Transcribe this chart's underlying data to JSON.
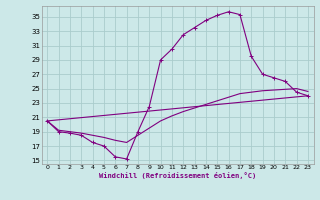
{
  "xlabel": "Windchill (Refroidissement éolien,°C)",
  "bg_color": "#cce8e8",
  "line_color": "#800080",
  "grid_color": "#aacccc",
  "xlim": [
    -0.5,
    23.5
  ],
  "ylim": [
    14.5,
    36.5
  ],
  "yticks": [
    15,
    17,
    19,
    21,
    23,
    25,
    27,
    29,
    31,
    33,
    35
  ],
  "xticks": [
    0,
    1,
    2,
    3,
    4,
    5,
    6,
    7,
    8,
    9,
    10,
    11,
    12,
    13,
    14,
    15,
    16,
    17,
    18,
    19,
    20,
    21,
    22,
    23
  ],
  "line1_x": [
    0,
    1,
    2,
    3,
    4,
    5,
    6,
    7,
    8,
    9,
    10,
    11,
    12,
    13,
    14,
    15,
    16,
    17,
    18,
    19,
    20,
    21,
    22,
    23
  ],
  "line1_y": [
    20.5,
    19.0,
    18.8,
    18.5,
    17.5,
    17.0,
    15.5,
    15.2,
    19.0,
    22.5,
    29.0,
    30.5,
    32.5,
    33.5,
    34.5,
    35.2,
    35.7,
    35.3,
    29.5,
    27.0,
    26.5,
    26.0,
    24.5,
    24.0
  ],
  "line2_x": [
    0,
    1,
    2,
    3,
    4,
    5,
    6,
    7,
    8,
    9,
    10,
    11,
    12,
    13,
    14,
    15,
    16,
    17,
    18,
    19,
    20,
    21,
    22,
    23
  ],
  "line2_y": [
    20.5,
    19.2,
    19.0,
    18.8,
    18.5,
    18.2,
    17.8,
    17.5,
    18.5,
    19.5,
    20.5,
    21.2,
    21.8,
    22.3,
    22.8,
    23.3,
    23.8,
    24.3,
    24.5,
    24.7,
    24.8,
    24.9,
    25.0,
    24.6
  ],
  "line3_x": [
    0,
    23
  ],
  "line3_y": [
    20.5,
    24.0
  ]
}
